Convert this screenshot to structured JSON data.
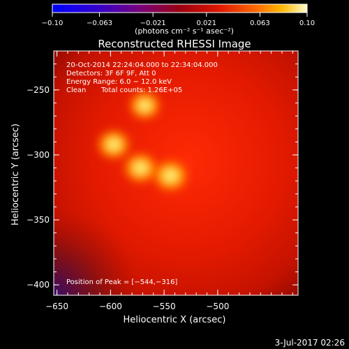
{
  "chart_data": {
    "type": "heatmap",
    "title": "Reconstructed RHESSI Image",
    "xlabel": "Heliocentric X (arcsec)",
    "ylabel": "Heliocentric Y (arcsec)",
    "xlim": [
      -653,
      -425
    ],
    "ylim": [
      -408,
      -220
    ],
    "x_ticks": [
      -650,
      -600,
      -550,
      -500
    ],
    "x_tick_labels": [
      "−650",
      "−600",
      "−550",
      "−500"
    ],
    "y_ticks": [
      -250,
      -300,
      -350,
      -400
    ],
    "y_tick_labels": [
      "−250",
      "−300",
      "−350",
      "−400"
    ],
    "colorbar": {
      "ticks": [
        -0.1,
        -0.063,
        -0.021,
        0.021,
        0.063,
        0.1
      ],
      "tick_labels": [
        "−0.10",
        "−0.063",
        "−0.021",
        "0.021",
        "0.063",
        "0.10"
      ],
      "unit_label": "(photons cm⁻² s⁻¹ asec⁻²)",
      "range": [
        -0.1,
        0.1
      ]
    },
    "sources": [
      {
        "x": -544,
        "y": -316,
        "peak": 0.1
      },
      {
        "x": -572,
        "y": -310,
        "peak": 0.09
      },
      {
        "x": -597,
        "y": -292,
        "peak": 0.085
      },
      {
        "x": -568,
        "y": -262,
        "peak": 0.075
      }
    ]
  },
  "annotations": {
    "time_range": "20-Oct-2014 22:24:04.000 to 22:34:04.000",
    "detectors": "Detectors: 3F 6F 9F, Att 0",
    "energy_range": "Energy Range: 6.0 − 12.0 keV",
    "algorithm": "Clean",
    "total_counts": "Total counts: 1.26E+05",
    "peak_position": "Position of Peak = [−544,−316]"
  },
  "footer": {
    "date": "3-Jul-2017 02:26"
  }
}
